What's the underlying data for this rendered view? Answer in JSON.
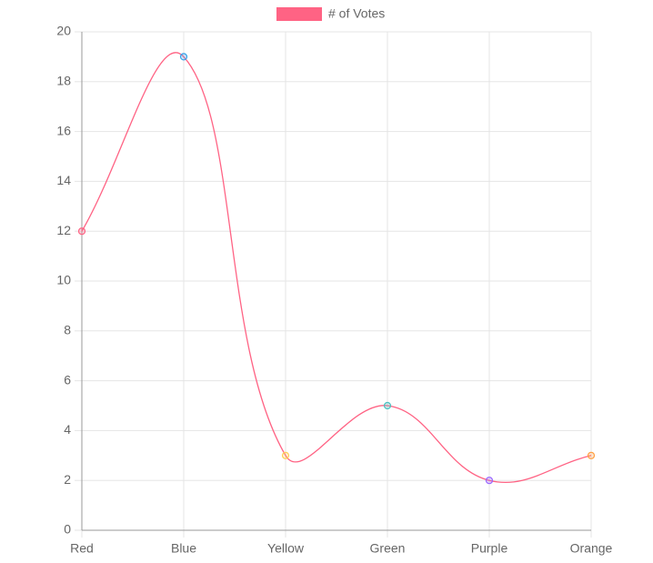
{
  "chart_data": {
    "type": "line",
    "categories": [
      "Red",
      "Blue",
      "Yellow",
      "Green",
      "Purple",
      "Orange"
    ],
    "series": [
      {
        "name": "# of Votes",
        "color": "#ff6384",
        "point_colors": [
          "#ff6384",
          "#36a2eb",
          "#ffce56",
          "#4bc0c0",
          "#9966ff",
          "#ff9f40"
        ],
        "values": [
          12,
          19,
          3,
          5,
          2,
          3
        ]
      }
    ],
    "ylim": [
      0,
      20
    ],
    "yticks": [
      0,
      2,
      4,
      6,
      8,
      10,
      12,
      14,
      16,
      18,
      20
    ],
    "grid": true,
    "smooth": true,
    "legend": "top"
  }
}
